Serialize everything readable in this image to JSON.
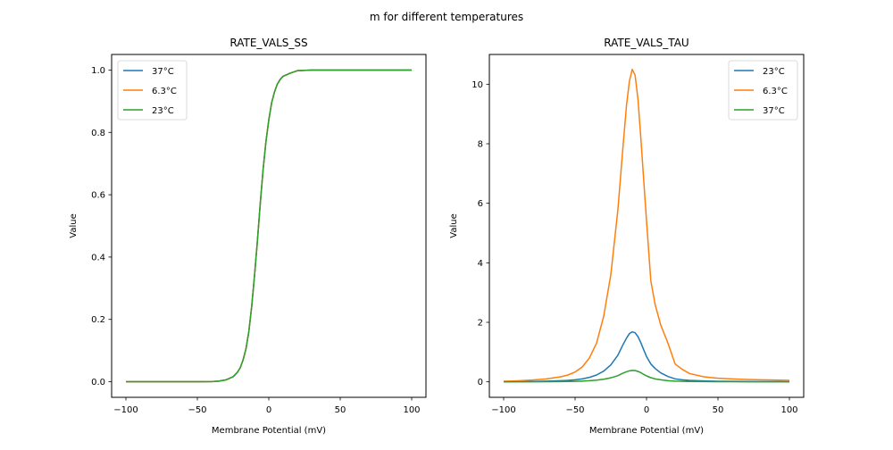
{
  "figure": {
    "suptitle": "m for different temperatures"
  },
  "chart_data": [
    {
      "type": "line",
      "title": "RATE_VALS_SS",
      "xlabel": "Membrane Potential (mV)",
      "ylabel": "Value",
      "xlim": [
        -110,
        110
      ],
      "ylim": [
        -0.05,
        1.05
      ],
      "xticks": [
        -100,
        -50,
        0,
        50,
        100
      ],
      "xtick_labels": [
        "−100",
        "−50",
        "0",
        "50",
        "100"
      ],
      "yticks": [
        0.0,
        0.2,
        0.4,
        0.6,
        0.8,
        1.0
      ],
      "ytick_labels": [
        "0.0",
        "0.2",
        "0.4",
        "0.6",
        "0.8",
        "1.0"
      ],
      "grid": false,
      "legend": "top-left",
      "x": [
        -100,
        -90,
        -80,
        -70,
        -60,
        -50,
        -40,
        -35,
        -30,
        -25,
        -22,
        -20,
        -18,
        -16,
        -14,
        -12,
        -10,
        -8,
        -6,
        -4,
        -2,
        0,
        2,
        4,
        6,
        8,
        10,
        15,
        20,
        30,
        40,
        50,
        60,
        70,
        80,
        90,
        100
      ],
      "series": [
        {
          "name": "37°C",
          "color": "#1f77b4",
          "values": [
            0,
            0,
            0,
            0,
            0,
            0,
            0.0005,
            0.002,
            0.006,
            0.016,
            0.03,
            0.045,
            0.07,
            0.105,
            0.16,
            0.24,
            0.34,
            0.45,
            0.57,
            0.68,
            0.77,
            0.84,
            0.895,
            0.93,
            0.955,
            0.97,
            0.98,
            0.99,
            0.998,
            1,
            1,
            1,
            1,
            1,
            1,
            1,
            1
          ]
        },
        {
          "name": "6.3°C",
          "color": "#ff7f0e",
          "values": [
            0,
            0,
            0,
            0,
            0,
            0,
            0.0005,
            0.002,
            0.006,
            0.016,
            0.03,
            0.045,
            0.07,
            0.105,
            0.16,
            0.24,
            0.34,
            0.45,
            0.57,
            0.68,
            0.77,
            0.84,
            0.895,
            0.93,
            0.955,
            0.97,
            0.98,
            0.99,
            0.998,
            1,
            1,
            1,
            1,
            1,
            1,
            1,
            1
          ]
        },
        {
          "name": "23°C",
          "color": "#2ca02c",
          "values": [
            0,
            0,
            0,
            0,
            0,
            0,
            0.0005,
            0.002,
            0.006,
            0.016,
            0.03,
            0.045,
            0.07,
            0.105,
            0.16,
            0.24,
            0.34,
            0.45,
            0.57,
            0.68,
            0.77,
            0.84,
            0.895,
            0.93,
            0.955,
            0.97,
            0.98,
            0.99,
            0.998,
            1,
            1,
            1,
            1,
            1,
            1,
            1,
            1
          ]
        }
      ]
    },
    {
      "type": "line",
      "title": "RATE_VALS_TAU",
      "xlabel": "Membrane Potential (mV)",
      "ylabel": "Value",
      "xlim": [
        -110,
        110
      ],
      "ylim": [
        -0.52,
        11.0
      ],
      "xticks": [
        -100,
        -50,
        0,
        50,
        100
      ],
      "xtick_labels": [
        "−100",
        "−50",
        "0",
        "50",
        "100"
      ],
      "yticks": [
        0,
        2,
        4,
        6,
        8,
        10
      ],
      "ytick_labels": [
        "0",
        "2",
        "4",
        "6",
        "8",
        "10"
      ],
      "grid": false,
      "legend": "top-right",
      "x": [
        -100,
        -90,
        -80,
        -70,
        -60,
        -55,
        -50,
        -45,
        -40,
        -35,
        -30,
        -25,
        -20,
        -17,
        -14,
        -12,
        -10,
        -8,
        -6,
        -4,
        -2,
        0,
        3,
        6,
        10,
        15,
        20,
        25,
        30,
        40,
        50,
        60,
        70,
        80,
        90,
        100
      ],
      "series": [
        {
          "name": "23°C",
          "color": "#1f77b4",
          "values": [
            0.005,
            0.008,
            0.013,
            0.022,
            0.038,
            0.05,
            0.07,
            0.1,
            0.15,
            0.23,
            0.36,
            0.57,
            0.9,
            1.2,
            1.47,
            1.62,
            1.68,
            1.65,
            1.52,
            1.32,
            1.08,
            0.85,
            0.6,
            0.45,
            0.3,
            0.18,
            0.1,
            0.07,
            0.05,
            0.03,
            0.02,
            0.015,
            0.012,
            0.01,
            0.008,
            0.006
          ]
        },
        {
          "name": "6.3°C",
          "color": "#ff7f0e",
          "values": [
            0.02,
            0.035,
            0.06,
            0.1,
            0.17,
            0.23,
            0.33,
            0.5,
            0.8,
            1.3,
            2.2,
            3.6,
            5.8,
            7.6,
            9.3,
            10.1,
            10.5,
            10.3,
            9.5,
            8.2,
            6.8,
            5.4,
            3.4,
            2.6,
            1.9,
            1.3,
            0.6,
            0.42,
            0.28,
            0.17,
            0.12,
            0.1,
            0.08,
            0.07,
            0.06,
            0.05
          ]
        },
        {
          "name": "37°C",
          "color": "#2ca02c",
          "values": [
            0.001,
            0.002,
            0.003,
            0.005,
            0.009,
            0.012,
            0.017,
            0.025,
            0.037,
            0.056,
            0.087,
            0.135,
            0.21,
            0.28,
            0.34,
            0.37,
            0.385,
            0.38,
            0.35,
            0.31,
            0.25,
            0.2,
            0.14,
            0.1,
            0.07,
            0.04,
            0.025,
            0.018,
            0.013,
            0.008,
            0.006,
            0.004,
            0.003,
            0.002,
            0.002,
            0.001
          ]
        }
      ]
    }
  ]
}
